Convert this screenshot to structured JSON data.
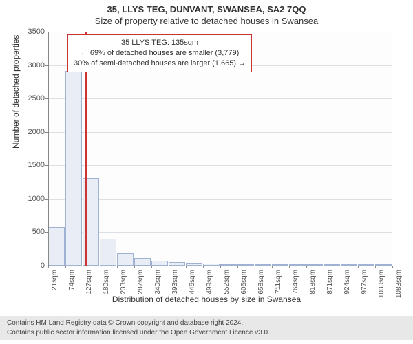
{
  "header": {
    "address": "35, LLYS TEG, DUNVANT, SWANSEA, SA2 7QQ",
    "subtitle": "Size of property relative to detached houses in Swansea"
  },
  "chart": {
    "type": "histogram",
    "y_label": "Number of detached properties",
    "x_label": "Distribution of detached houses by size in Swansea",
    "ylim": [
      0,
      3500
    ],
    "ytick_step": 500,
    "y_ticks": [
      0,
      500,
      1000,
      1500,
      2000,
      2500,
      3000,
      3500
    ],
    "x_labels": [
      "21sqm",
      "74sqm",
      "127sqm",
      "180sqm",
      "233sqm",
      "287sqm",
      "340sqm",
      "393sqm",
      "446sqm",
      "499sqm",
      "552sqm",
      "605sqm",
      "658sqm",
      "711sqm",
      "764sqm",
      "818sqm",
      "871sqm",
      "924sqm",
      "977sqm",
      "1030sqm",
      "1083sqm"
    ],
    "values": [
      580,
      2910,
      1310,
      400,
      190,
      110,
      70,
      50,
      38,
      28,
      20,
      15,
      12,
      10,
      8,
      6,
      5,
      4,
      3,
      2
    ],
    "bar_fill": "#e8edf6",
    "bar_border": "#9fb2d1",
    "grid_color": "#dcdfe4",
    "background": "#fdfdfd",
    "reference": {
      "value_sqm": 135,
      "line_color": "#cc3333",
      "box_lines": {
        "l1": "35 LLYS TEG: 135sqm",
        "l2": "← 69% of detached houses are smaller (3,779)",
        "l3": "30% of semi-detached houses are larger (1,665) →"
      }
    }
  },
  "footer": {
    "line1": "Contains HM Land Registry data © Crown copyright and database right 2024.",
    "line2": "Contains public sector information licensed under the Open Government Licence v3.0."
  }
}
